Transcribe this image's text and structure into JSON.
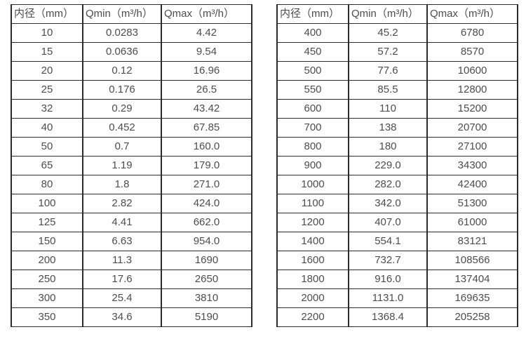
{
  "colors": {
    "background": "#ffffff",
    "border": "#2b2b2b",
    "text": "#4d4d4d"
  },
  "table_left": {
    "headers": [
      "内径（mm）",
      "Qmin（m³/h）",
      "Qmax（m³/h）"
    ],
    "rows": [
      [
        "10",
        "0.0283",
        "4.42"
      ],
      [
        "15",
        "0.0636",
        "9.54"
      ],
      [
        "20",
        "0.12",
        "16.96"
      ],
      [
        "25",
        "0.176",
        "26.5"
      ],
      [
        "32",
        "0.29",
        "43.42"
      ],
      [
        "40",
        "0.452",
        "67.85"
      ],
      [
        "50",
        "0.7",
        "160.0"
      ],
      [
        "65",
        "1.19",
        "179.0"
      ],
      [
        "80",
        "1.8",
        "271.0"
      ],
      [
        "100",
        "2.82",
        "424.0"
      ],
      [
        "125",
        "4.41",
        "662.0"
      ],
      [
        "150",
        "6.63",
        "954.0"
      ],
      [
        "200",
        "11.3",
        "1690"
      ],
      [
        "250",
        "17.6",
        "2650"
      ],
      [
        "300",
        "25.4",
        "3810"
      ],
      [
        "350",
        "34.6",
        "5190"
      ]
    ]
  },
  "table_right": {
    "headers": [
      "内径（mm）",
      "Qmin（m³/h）",
      "Qmax（m³/h）"
    ],
    "rows": [
      [
        "400",
        "45.2",
        "6780"
      ],
      [
        "450",
        "57.2",
        "8570"
      ],
      [
        "500",
        "77.6",
        "10600"
      ],
      [
        "550",
        "85.5",
        "12800"
      ],
      [
        "600",
        "110",
        "15200"
      ],
      [
        "700",
        "138",
        "20700"
      ],
      [
        "800",
        "180",
        "27100"
      ],
      [
        "900",
        "229.0",
        "34300"
      ],
      [
        "1000",
        "282.0",
        "42400"
      ],
      [
        "1100",
        "342.0",
        "51300"
      ],
      [
        "1200",
        "407.0",
        "61000"
      ],
      [
        "1400",
        "554.1",
        "83121"
      ],
      [
        "1600",
        "732.7",
        "108566"
      ],
      [
        "1800",
        "916.0",
        "137404"
      ],
      [
        "2000",
        "1131.0",
        "169635"
      ],
      [
        "2200",
        "1368.4",
        "205258"
      ]
    ]
  }
}
